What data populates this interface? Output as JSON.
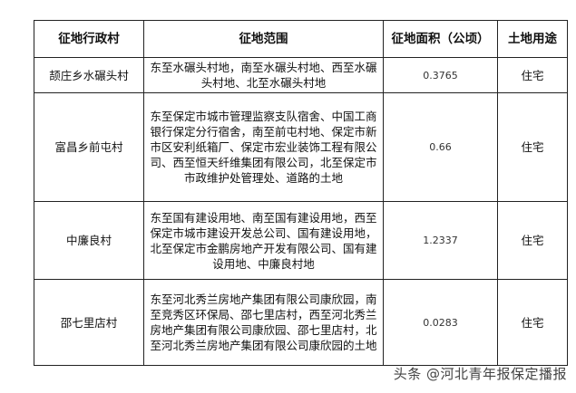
{
  "table": {
    "headers": [
      "征地行政村",
      "征地范围",
      "征地面积（公顷）",
      "土地用途"
    ],
    "rows": [
      {
        "village": "颉庄乡水碾头村",
        "scope": "东至水碾头村地，南至水碾头村地、西至水碾头村地、北至水碾头村地",
        "area": "0.3765",
        "use": "住宅"
      },
      {
        "village": "富昌乡前屯村",
        "scope": "东至保定市城市管理监察支队宿舍、中国工商银行保定分行宿舍，南至前屯村地、保定市新市区安利纸箱厂、保定市宏业装饰工程有限公司、西至恒天纤维集团有限公司，北至保定市市政维护处管理处、道路的土地",
        "area": "0.66",
        "use": "住宅"
      },
      {
        "village": "中廉良村",
        "scope": "东至国有建设用地、南至国有建设用地，西至保定市城市建设开发总公司、国有建设用地，北至保定市金鹏房地产开发有限公司、国有建设用地、中廉良村地",
        "area": "1.2337",
        "use": "住宅"
      },
      {
        "village": "邵七里店村",
        "scope": "东至河北秀兰房地产集团有限公司康欣园，南至竞秀区环保局、邵七里店村，西至河北秀兰房地产集团有限公司康欣园、邵七里店村，北至河北秀兰房地产集团有限公司康欣园的土地",
        "area": "0.0283",
        "use": "住宅"
      }
    ]
  },
  "watermark": "头条 @河北青年报保定播报"
}
